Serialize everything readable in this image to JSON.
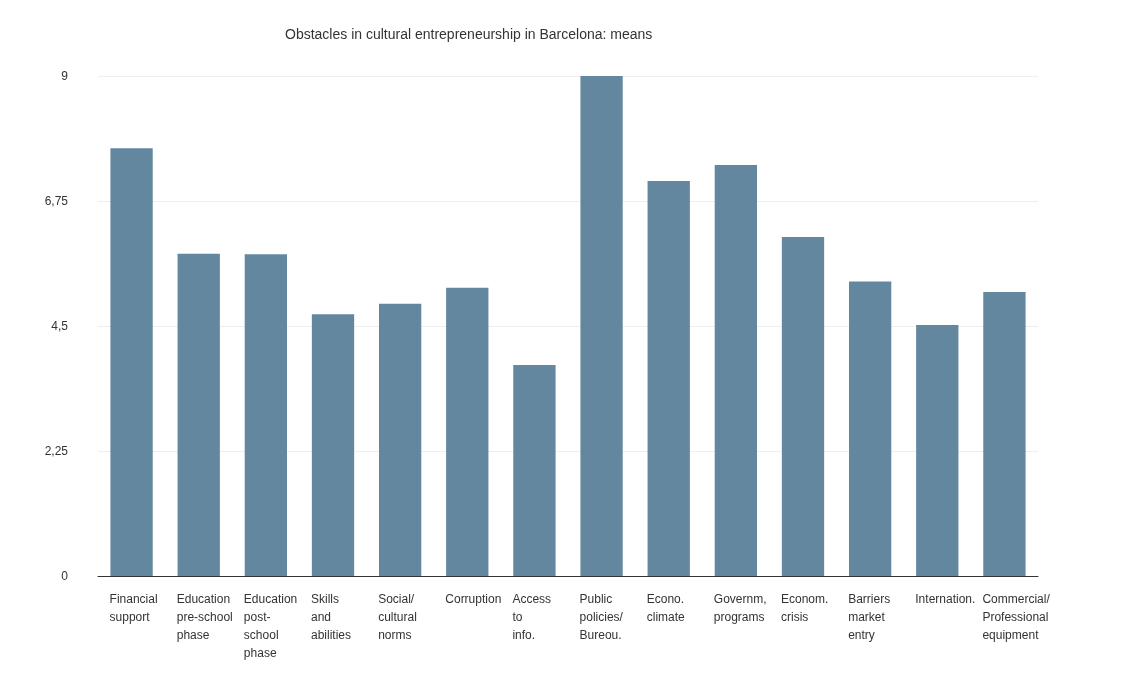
{
  "chart_data": {
    "type": "bar",
    "title": "Obstacles in cultural entrepreneurship in Barcelona: means",
    "categories": [
      "Financial\nsupport",
      "Education\npre-school\nphase",
      "Education\npost-\nschool\nphase",
      "Skills\nand\nabilities",
      "Social/\ncultural\nnorms",
      "Corruption",
      "Access\nto\ninfo.",
      "Public\npolicies/\nBureou.",
      "Econo.\nclimate",
      "Governm,\nprograms",
      "Econom.\ncrisis",
      "Barriers\nmarket\nentry",
      "Internation.",
      "Commercial/\nProfessional\nequipment"
    ],
    "values": [
      7.7,
      5.8,
      5.79,
      4.71,
      4.9,
      5.19,
      3.8,
      9.0,
      7.11,
      7.4,
      6.1,
      5.3,
      4.52,
      5.11
    ],
    "color": "#62879f",
    "ylim": [
      0,
      9
    ],
    "yticks": [
      0,
      {
        "value": 2.25,
        "label": "2,25"
      },
      {
        "value": 4.5,
        "label": "4,5"
      },
      {
        "value": 6.75,
        "label": "6,75"
      },
      9
    ],
    "grid": "y"
  }
}
